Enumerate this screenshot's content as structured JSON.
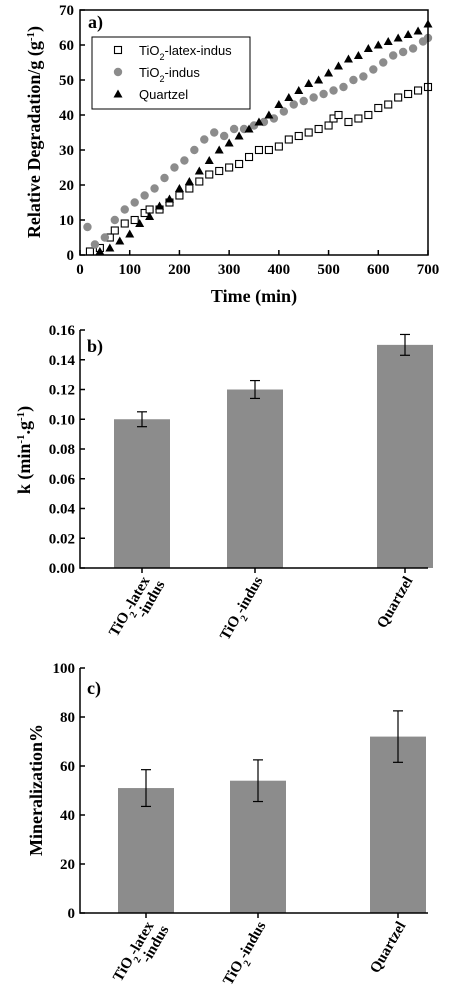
{
  "chart_data": [
    {
      "type": "scatter",
      "panel_label": "a)",
      "xlabel": "Time (min)",
      "ylabel_parts": [
        "Relative Degradation/g (g",
        "-1",
        ")"
      ],
      "xlim": [
        0,
        700
      ],
      "ylim": [
        0,
        70
      ],
      "xticks": [
        0,
        100,
        200,
        300,
        400,
        500,
        600,
        700
      ],
      "yticks": [
        0,
        10,
        20,
        30,
        40,
        50,
        60,
        70
      ],
      "legend_position": "top-left",
      "series": [
        {
          "name_parts": [
            "TiO",
            "2",
            "-latex-indus"
          ],
          "marker": "open-square",
          "color": "#000000",
          "x": [
            20,
            40,
            60,
            70,
            90,
            110,
            130,
            140,
            160,
            180,
            200,
            220,
            240,
            260,
            280,
            300,
            320,
            340,
            360,
            380,
            400,
            420,
            440,
            460,
            480,
            500,
            510,
            520,
            540,
            560,
            580,
            600,
            620,
            640,
            660,
            680,
            700
          ],
          "y": [
            1,
            2,
            5,
            7,
            9,
            10,
            12,
            13,
            13,
            15,
            17,
            19,
            21,
            23,
            24,
            25,
            26,
            28,
            30,
            30,
            31,
            33,
            34,
            35,
            36,
            37,
            39,
            40,
            38,
            39,
            40,
            42,
            43,
            45,
            46,
            47,
            48
          ]
        },
        {
          "name_parts": [
            "TiO",
            "2",
            "-indus"
          ],
          "marker": "filled-circle",
          "color": "#8c8c8c",
          "x": [
            15,
            30,
            50,
            70,
            90,
            110,
            130,
            150,
            170,
            190,
            210,
            230,
            250,
            270,
            290,
            310,
            330,
            350,
            370,
            390,
            410,
            430,
            450,
            470,
            490,
            510,
            530,
            550,
            570,
            590,
            610,
            630,
            650,
            670,
            690,
            700
          ],
          "y": [
            8,
            3,
            5,
            10,
            13,
            15,
            17,
            19,
            22,
            25,
            27,
            30,
            33,
            35,
            34,
            36,
            36,
            37,
            38,
            39,
            41,
            43,
            44,
            45,
            46,
            47,
            48,
            50,
            51,
            53,
            55,
            57,
            58,
            59,
            61,
            62
          ]
        },
        {
          "name_parts": [
            "Quartzel"
          ],
          "marker": "filled-triangle",
          "color": "#000000",
          "x": [
            40,
            60,
            80,
            100,
            120,
            140,
            160,
            180,
            200,
            220,
            240,
            260,
            280,
            300,
            320,
            340,
            360,
            380,
            400,
            420,
            440,
            460,
            480,
            500,
            520,
            540,
            560,
            580,
            600,
            620,
            640,
            660,
            680,
            700
          ],
          "y": [
            1,
            2,
            4,
            6,
            9,
            11,
            14,
            16,
            19,
            21,
            24,
            27,
            30,
            32,
            34,
            36,
            38,
            40,
            43,
            45,
            47,
            49,
            50,
            52,
            54,
            56,
            57,
            59,
            60,
            61,
            62,
            63,
            64,
            66
          ]
        }
      ]
    },
    {
      "type": "bar",
      "panel_label": "b)",
      "ylabel_parts": [
        "k (min",
        "-1",
        ".g",
        "-1",
        ")"
      ],
      "ylim": [
        0,
        0.16
      ],
      "yticks": [
        "0.00",
        "0.02",
        "0.04",
        "0.06",
        "0.08",
        "0.10",
        "0.12",
        "0.14",
        "0.16"
      ],
      "categories": [
        {
          "parts": [
            "TiO",
            "2",
            "-latex"
          ],
          "line2": "-indus"
        },
        {
          "parts": [
            "TiO",
            "2",
            "-indus"
          ],
          "line2": ""
        },
        {
          "parts": [
            "Quartzel"
          ],
          "line2": ""
        }
      ],
      "values": [
        0.1,
        0.12,
        0.15
      ],
      "errors": [
        0.005,
        0.006,
        0.007
      ],
      "bar_color": "#8c8c8c"
    },
    {
      "type": "bar",
      "panel_label": "c)",
      "ylabel_parts": [
        "Mineralization%"
      ],
      "ylim": [
        0,
        100
      ],
      "yticks": [
        "0",
        "20",
        "40",
        "60",
        "80",
        "100"
      ],
      "categories": [
        {
          "parts": [
            "TiO",
            "2",
            "-latex"
          ],
          "line2": "-indus"
        },
        {
          "parts": [
            "TiO",
            "2",
            "-indus"
          ],
          "line2": ""
        },
        {
          "parts": [
            "Quartzel"
          ],
          "line2": ""
        }
      ],
      "values": [
        51,
        54,
        72
      ],
      "errors": [
        7.5,
        8.5,
        10.5
      ],
      "bar_color": "#8c8c8c"
    }
  ]
}
